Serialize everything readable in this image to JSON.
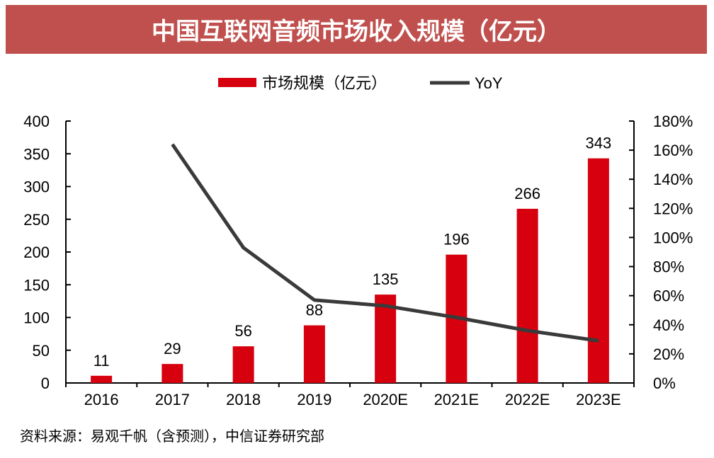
{
  "chart_data": {
    "type": "bar",
    "title": "中国互联网音频市场收入规模（亿元）",
    "categories": [
      "2016",
      "2017",
      "2018",
      "2019",
      "2020E",
      "2021E",
      "2022E",
      "2023E"
    ],
    "series": [
      {
        "name": "市场规模（亿元）",
        "type": "bar",
        "axis": "left",
        "color": "#d7000f",
        "values": [
          11,
          29,
          56,
          88,
          135,
          196,
          266,
          343
        ]
      },
      {
        "name": "YoY",
        "type": "line",
        "axis": "right",
        "color": "#3a3a3a",
        "values": [
          null,
          164,
          93,
          57,
          53,
          45,
          36,
          29
        ]
      }
    ],
    "ylim_left": [
      0,
      400
    ],
    "yticks_left": [
      "0",
      "50",
      "100",
      "150",
      "200",
      "250",
      "300",
      "350",
      "400"
    ],
    "ylim_right": [
      0,
      180
    ],
    "yticks_right": [
      "0%",
      "20%",
      "40%",
      "60%",
      "80%",
      "100%",
      "120%",
      "140%",
      "160%",
      "180%"
    ],
    "legend": "top-center",
    "grid": false
  },
  "source": "资料来源：易观千帆（含预测），中信证券研究部"
}
